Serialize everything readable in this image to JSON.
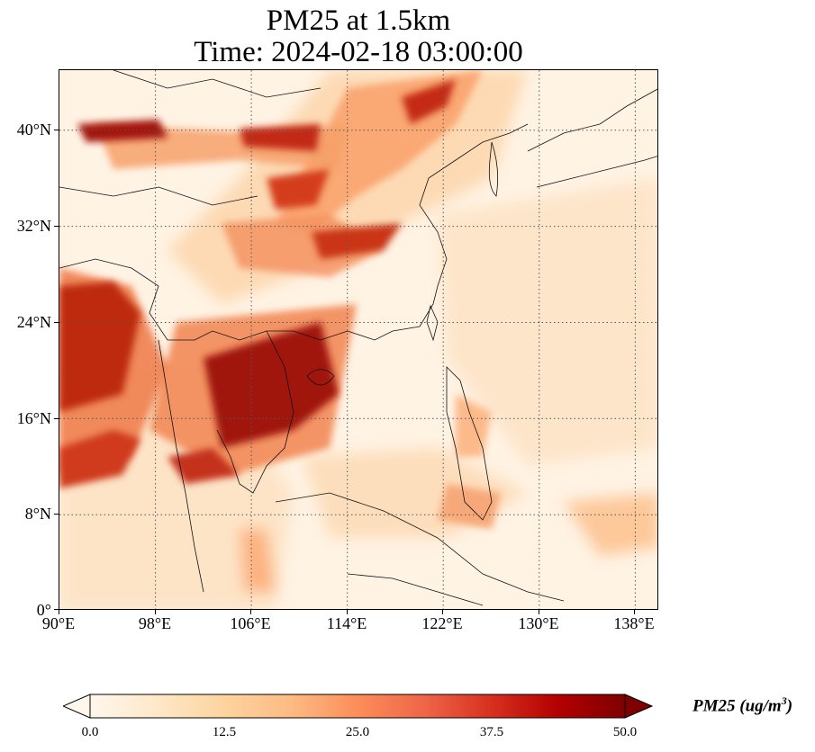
{
  "title": {
    "line1": "PM25 at 1.5km",
    "line2": "Time: 2024-02-18 03:00:00"
  },
  "axes": {
    "lon_ticks": [
      "90°E",
      "98°E",
      "106°E",
      "114°E",
      "122°E",
      "130°E",
      "138°E"
    ],
    "lat_ticks": [
      "40°N",
      "32°N",
      "24°N",
      "16°N",
      "8°N",
      "0°"
    ],
    "lon_range": [
      90,
      140
    ],
    "lat_range": [
      0,
      45
    ]
  },
  "colorbar": {
    "colormap": "OrRd",
    "colors": [
      "#fff7ec",
      "#fee8c8",
      "#fdd49e",
      "#fdbb84",
      "#fc8d59",
      "#ef6548",
      "#d7301f",
      "#b30000",
      "#7f0000"
    ],
    "ticks": [
      "0.0",
      "12.5",
      "25.0",
      "37.5",
      "50.0"
    ],
    "range": [
      0,
      50
    ],
    "extend": "both",
    "label_text": "PM25 (ug/m",
    "label_sup": "3",
    "label_close": ")"
  },
  "gridlines": {
    "style": "dotted",
    "color": "#555555"
  }
}
